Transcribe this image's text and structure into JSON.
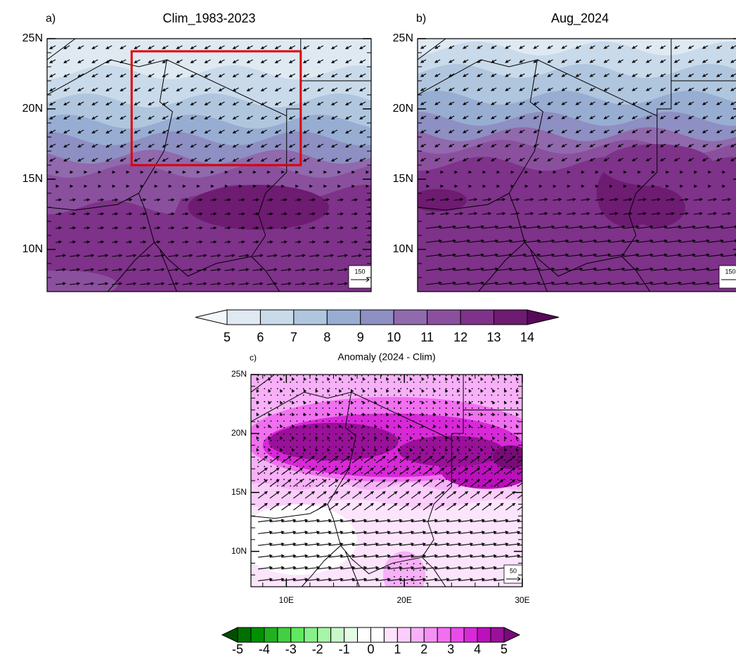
{
  "panels": [
    {
      "label": "a)",
      "title": "Clim_1983-2023",
      "xlim": [
        7,
        30
      ],
      "ylim": [
        7,
        25
      ],
      "yticks": [
        {
          "value": 10,
          "label": "10N"
        },
        {
          "value": 15,
          "label": "15N"
        },
        {
          "value": 20,
          "label": "20N"
        },
        {
          "value": 25,
          "label": "25N"
        }
      ],
      "ref_vector": 150
    },
    {
      "label": "b)",
      "title": "Aug_2024",
      "xlim": [
        7,
        30
      ],
      "ylim": [
        7,
        25
      ],
      "yticks": [
        {
          "value": 10,
          "label": "10N"
        },
        {
          "value": 15,
          "label": "15N"
        },
        {
          "value": 20,
          "label": "20N"
        },
        {
          "value": 25,
          "label": "25N"
        }
      ],
      "ref_vector": 150
    },
    {
      "label": "c)",
      "title": "Anomaly (2024 - Clim)",
      "xlim": [
        7,
        30
      ],
      "ylim": [
        7,
        25
      ],
      "yticks": [
        {
          "value": 10,
          "label": "10N"
        },
        {
          "value": 15,
          "label": "15N"
        },
        {
          "value": 20,
          "label": "20N"
        },
        {
          "value": 25,
          "label": "25N"
        }
      ],
      "xticks": [
        {
          "value": 10,
          "label": "10E"
        },
        {
          "value": 20,
          "label": "20E"
        },
        {
          "value": 30,
          "label": "30E"
        }
      ],
      "ref_vector": 50
    }
  ],
  "colorbars": [
    {
      "levels": [
        5,
        6,
        7,
        8,
        9,
        10,
        11,
        12,
        13,
        14
      ],
      "colors": [
        "#f3f7fb",
        "#dfe9f2",
        "#c9daea",
        "#b0c6de",
        "#98add2",
        "#8e8fc2",
        "#9169ad",
        "#8a509e",
        "#7e3289",
        "#6e1b72",
        "#560a58"
      ]
    },
    {
      "levels": [
        -5,
        -4,
        -3,
        -2,
        -1,
        0,
        1,
        2,
        3,
        4,
        5
      ],
      "colors": [
        "#005000",
        "#007000",
        "#009000",
        "#20b020",
        "#40d040",
        "#60e860",
        "#88f088",
        "#a8f5a8",
        "#c8f8c8",
        "#e4fbe4",
        "#ffffff",
        "#ffffff",
        "#fde4fd",
        "#fbcdfb",
        "#f8b0f8",
        "#f590f5",
        "#f070f0",
        "#e84ce8",
        "#d828d8",
        "#bb10bb",
        "#991099",
        "#7a0a7a"
      ]
    }
  ]
}
